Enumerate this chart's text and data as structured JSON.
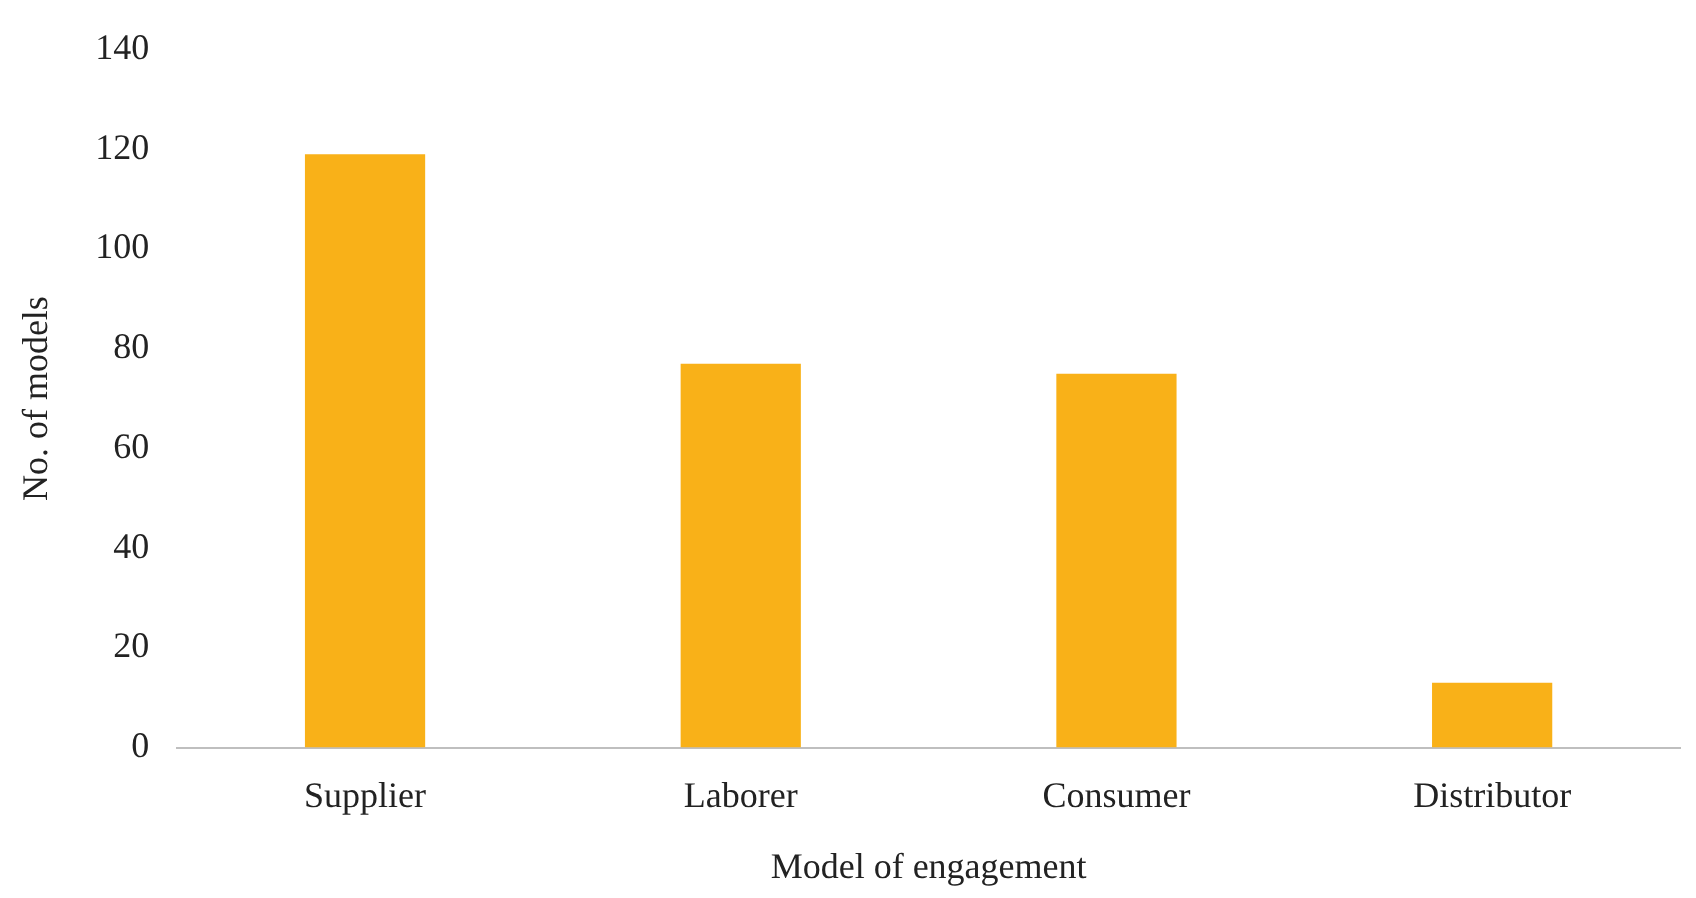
{
  "chart_data": {
    "type": "bar",
    "xlabel": "Model of engagement",
    "ylabel": "No. of models",
    "categories": [
      "Supplier",
      "Laborer",
      "Consumer",
      "Distributor"
    ],
    "values": [
      119,
      77,
      75,
      13
    ],
    "color": "#f9b118",
    "ylim": [
      0,
      140
    ],
    "yticks": [
      0,
      20,
      40,
      60,
      80,
      100,
      120,
      140
    ],
    "grid": false,
    "legend": false
  }
}
